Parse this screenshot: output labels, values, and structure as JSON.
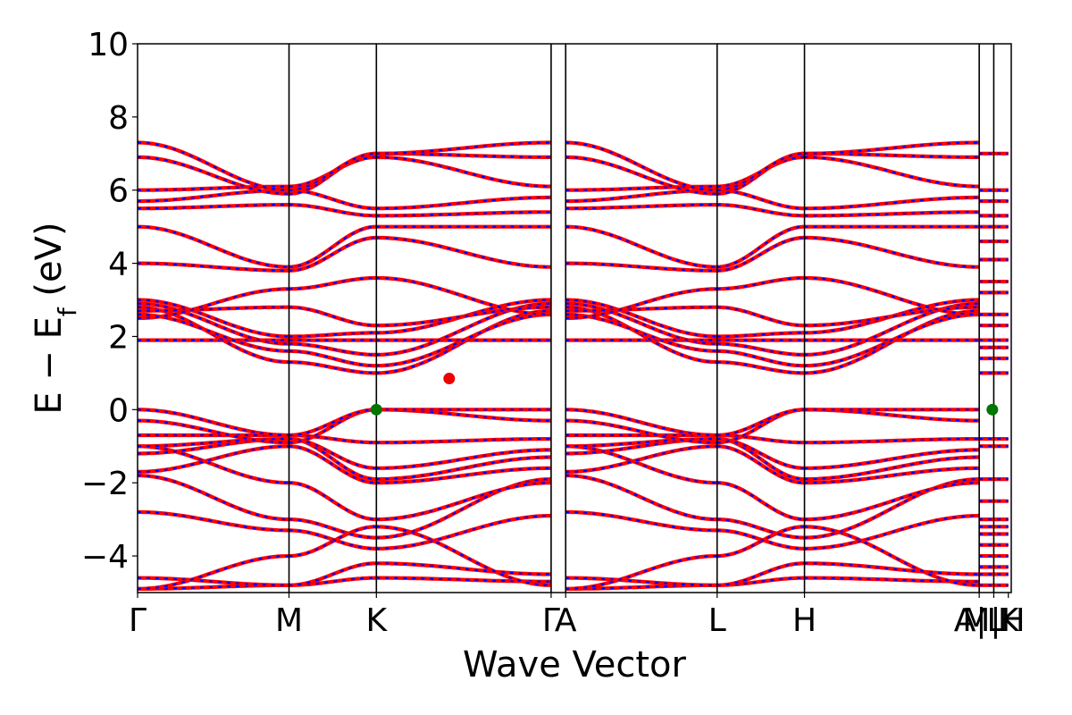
{
  "chart_data": {
    "type": "line",
    "title": "",
    "xlabel": "Wave Vector",
    "ylabel": {
      "main": "E − E",
      "subscript": "f",
      "unit": " (eV)"
    },
    "ylim": [
      -5,
      10
    ],
    "yticks": [
      {
        "value": -4,
        "label": "−4"
      },
      {
        "value": -2,
        "label": "−2"
      },
      {
        "value": 0,
        "label": "0"
      },
      {
        "value": 2,
        "label": "2"
      },
      {
        "value": 4,
        "label": "4"
      },
      {
        "value": 6,
        "label": "6"
      },
      {
        "value": 8,
        "label": "8"
      },
      {
        "value": 10,
        "label": "10"
      }
    ],
    "kpath": {
      "range": [
        0,
        6.0
      ],
      "points": [
        {
          "pos": 0.0,
          "label": "Γ",
          "line": false
        },
        {
          "pos": 1.04,
          "label": "M",
          "line": true
        },
        {
          "pos": 1.64,
          "label": "K",
          "line": true
        },
        {
          "pos": 2.84,
          "label": "Γ",
          "line": true
        },
        {
          "pos": 2.94,
          "label": "A",
          "line": true
        },
        {
          "pos": 3.98,
          "label": "L",
          "line": true
        },
        {
          "pos": 4.58,
          "label": "H",
          "line": true
        },
        {
          "pos": 5.78,
          "label": "A|L",
          "line": true
        },
        {
          "pos": 5.88,
          "label": "M|H",
          "line": true
        },
        {
          "pos": 5.98,
          "label": "K",
          "line": false
        }
      ]
    },
    "segments": [
      {
        "from": "Γ",
        "to": "M",
        "x": [
          0.0,
          1.04
        ]
      },
      {
        "from": "M",
        "to": "K",
        "x": [
          1.04,
          1.64
        ]
      },
      {
        "from": "K",
        "to": "Γ",
        "x": [
          1.64,
          2.84
        ]
      },
      {
        "from": "A",
        "to": "L",
        "x": [
          2.94,
          3.98
        ]
      },
      {
        "from": "L",
        "to": "H",
        "x": [
          3.98,
          4.58
        ]
      },
      {
        "from": "H",
        "to": "A",
        "x": [
          4.58,
          5.78
        ]
      }
    ],
    "bands": [
      {
        "nodes": [
          -4.9,
          -4.8,
          -4.6,
          -4.7
        ],
        "kind": "valence"
      },
      {
        "nodes": [
          -4.6,
          -4.8,
          -4.2,
          -4.5
        ],
        "kind": "valence"
      },
      {
        "nodes": [
          -4.9,
          -4.0,
          -3.2,
          -4.8
        ],
        "kind": "valence"
      },
      {
        "nodes": [
          -2.8,
          -3.3,
          -3.8,
          -2.9
        ],
        "kind": "valence"
      },
      {
        "nodes": [
          -1.8,
          -3.0,
          -3.5,
          -1.9
        ],
        "kind": "valence"
      },
      {
        "nodes": [
          -1.0,
          -2.0,
          -3.0,
          -2.0
        ],
        "kind": "valence"
      },
      {
        "nodes": [
          -1.7,
          -1.0,
          -2.0,
          -1.6
        ],
        "kind": "valence"
      },
      {
        "nodes": [
          -1.2,
          -0.8,
          -1.9,
          -1.3
        ],
        "kind": "valence"
      },
      {
        "nodes": [
          -1.0,
          -0.8,
          -1.6,
          -1.1
        ],
        "kind": "valence"
      },
      {
        "nodes": [
          -0.7,
          -0.7,
          -0.9,
          -0.8
        ],
        "kind": "valence"
      },
      {
        "nodes": [
          -0.3,
          -0.9,
          0.0,
          -0.3
        ],
        "kind": "valence"
      },
      {
        "nodes": [
          0.0,
          -0.7,
          0.0,
          0.0
        ],
        "kind": "valence"
      },
      {
        "nodes": [
          1.9,
          1.9,
          1.9,
          1.9
        ],
        "kind": "conduction"
      },
      {
        "nodes": [
          2.8,
          1.3,
          1.0,
          2.7
        ],
        "kind": "conduction"
      },
      {
        "nodes": [
          2.6,
          1.6,
          1.2,
          2.6
        ],
        "kind": "conduction"
      },
      {
        "nodes": [
          2.9,
          1.8,
          1.5,
          2.9
        ],
        "kind": "conduction"
      },
      {
        "nodes": [
          3.0,
          2.0,
          2.1,
          3.0
        ],
        "kind": "conduction"
      },
      {
        "nodes": [
          2.7,
          2.8,
          2.3,
          2.8
        ],
        "kind": "conduction"
      },
      {
        "nodes": [
          2.5,
          3.3,
          3.6,
          2.6
        ],
        "kind": "conduction"
      },
      {
        "nodes": [
          4.0,
          3.8,
          4.7,
          3.9
        ],
        "kind": "conduction"
      },
      {
        "nodes": [
          5.0,
          3.9,
          5.0,
          5.0
        ],
        "kind": "conduction"
      },
      {
        "nodes": [
          5.5,
          5.6,
          5.3,
          5.4
        ],
        "kind": "conduction"
      },
      {
        "nodes": [
          5.7,
          6.0,
          5.5,
          5.8
        ],
        "kind": "conduction"
      },
      {
        "nodes": [
          6.0,
          6.1,
          6.9,
          6.1
        ],
        "kind": "conduction"
      },
      {
        "nodes": [
          6.9,
          5.9,
          7.0,
          6.9
        ],
        "kind": "conduction"
      },
      {
        "nodes": [
          7.3,
          6.0,
          7.0,
          7.3
        ],
        "kind": "conduction"
      }
    ],
    "tail": {
      "x": [
        5.78,
        5.98
      ],
      "levels": [
        -4.8,
        -4.5,
        -4.3,
        -4.0,
        -3.7,
        -3.4,
        -3.2,
        -3.0,
        -2.5,
        -1.9,
        -1.0,
        -0.8,
        1.0,
        1.4,
        1.7,
        1.9,
        2.3,
        2.6,
        3.2,
        3.5,
        4.1,
        4.6,
        5.0,
        5.3,
        5.7,
        6.0,
        7.0
      ]
    },
    "markers": [
      {
        "name": "vbm-marker-k",
        "x": 1.64,
        "y": 0.0,
        "color": "#007500"
      },
      {
        "name": "vbm-marker-ml",
        "x": 5.87,
        "y": 0.0,
        "color": "#007500"
      },
      {
        "name": "cbm-marker",
        "x": 2.14,
        "y": 0.85,
        "color": "#ee0000"
      }
    ],
    "series": [
      {
        "style": "solid",
        "color": "#ff0000"
      },
      {
        "style": "dashed",
        "color": "#0000ff"
      }
    ],
    "frame_color": "#000000",
    "grid": false,
    "legend": "none"
  }
}
